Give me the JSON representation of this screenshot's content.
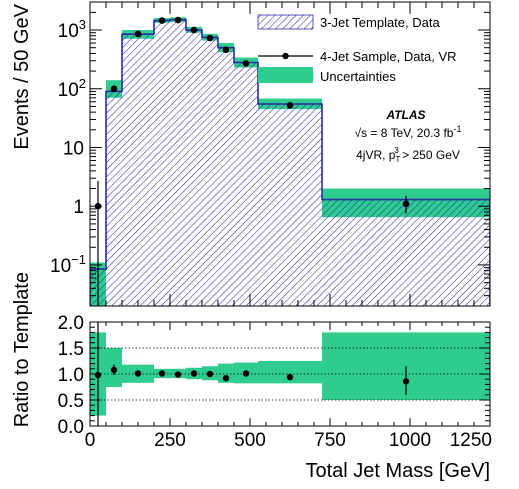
{
  "chart_data": [
    {
      "type": "bar",
      "panel": "main",
      "xlabel": "Total Jet Mass [GeV]",
      "ylabel": "Events / 50 GeV",
      "xlim": [
        0,
        1250
      ],
      "ylim": [
        0.02,
        3000
      ],
      "yscale": "log",
      "y_tick_labels": [
        {
          "base": "10",
          "exp": "−1",
          "value": 0.1
        },
        {
          "base": "1",
          "exp": "",
          "value": 1
        },
        {
          "base": "10",
          "exp": "",
          "value": 10
        },
        {
          "base": "10",
          "exp": "2",
          "value": 100
        },
        {
          "base": "10",
          "exp": "3",
          "value": 1000
        }
      ],
      "x_tick_labels": [
        "0",
        "250",
        "500",
        "750",
        "1000",
        "1250"
      ],
      "bins": [
        {
          "lo": 0,
          "hi": 50,
          "template": 0.085,
          "unc_lo": 0.02,
          "unc_hi": 0.11
        },
        {
          "lo": 50,
          "hi": 100,
          "template": 90,
          "unc_lo": 70,
          "unc_hi": 140
        },
        {
          "lo": 100,
          "hi": 200,
          "template": 850,
          "unc_lo": 710,
          "unc_hi": 1000
        },
        {
          "lo": 200,
          "hi": 250,
          "template": 1450,
          "unc_lo": 1330,
          "unc_hi": 1600
        },
        {
          "lo": 250,
          "hi": 300,
          "template": 1500,
          "unc_lo": 1380,
          "unc_hi": 1650
        },
        {
          "lo": 300,
          "hi": 350,
          "template": 1000,
          "unc_lo": 900,
          "unc_hi": 1130
        },
        {
          "lo": 350,
          "hi": 400,
          "template": 750,
          "unc_lo": 660,
          "unc_hi": 860
        },
        {
          "lo": 400,
          "hi": 450,
          "template": 500,
          "unc_lo": 420,
          "unc_hi": 600
        },
        {
          "lo": 450,
          "hi": 525,
          "template": 280,
          "unc_lo": 230,
          "unc_hi": 340
        },
        {
          "lo": 525,
          "hi": 725,
          "template": 55,
          "unc_lo": 45,
          "unc_hi": 68
        },
        {
          "lo": 725,
          "hi": 1250,
          "template": 1.3,
          "unc_lo": 0.65,
          "unc_hi": 2.0
        }
      ],
      "series": [
        {
          "name": "4-Jet Sample, Data, VR",
          "points": [
            {
              "x": 25,
              "y": 1.0,
              "ylo": 0.02,
              "yhi": 2.7
            },
            {
              "x": 75,
              "y": 100,
              "ylo": 90,
              "yhi": 110
            },
            {
              "x": 150,
              "y": 860,
              "ylo": 830,
              "yhi": 890
            },
            {
              "x": 225,
              "y": 1450,
              "ylo": 1410,
              "yhi": 1490
            },
            {
              "x": 275,
              "y": 1480,
              "ylo": 1440,
              "yhi": 1520
            },
            {
              "x": 325,
              "y": 1000,
              "ylo": 970,
              "yhi": 1030
            },
            {
              "x": 375,
              "y": 730,
              "ylo": 700,
              "yhi": 760
            },
            {
              "x": 425,
              "y": 460,
              "ylo": 440,
              "yhi": 480
            },
            {
              "x": 487.5,
              "y": 270,
              "ylo": 255,
              "yhi": 285
            },
            {
              "x": 625,
              "y": 52,
              "ylo": 48,
              "yhi": 56
            },
            {
              "x": 987.5,
              "y": 1.1,
              "ylo": 0.75,
              "yhi": 1.5
            }
          ]
        }
      ],
      "legend": {
        "position": "top-right",
        "entries": [
          "3-Jet Template, Data",
          "4-Jet Sample, Data, VR",
          "Uncertainties"
        ]
      },
      "annotations": {
        "experiment": "ATLAS",
        "energy_prefix": "√s = 8 TeV, 20.3 fb",
        "energy_sup": "-1",
        "region_prefix": "4jVR, p",
        "region_sub": "T",
        "region_sup": "3",
        "region_suffix": " > 250 GeV"
      },
      "colors": {
        "template_hatch": "#2b2ba6",
        "uncertainty": "#2ecc8f"
      }
    },
    {
      "type": "scatter",
      "panel": "ratio",
      "xlabel": "Total Jet Mass [GeV]",
      "ylabel": "Ratio to Template",
      "xlim": [
        0,
        1250
      ],
      "ylim": [
        0.0,
        2.0
      ],
      "y_tick_labels": [
        "0.0",
        "0.5",
        "1.0",
        "1.5",
        "2.0"
      ],
      "grid_y": [
        0.5,
        1.0,
        1.5
      ],
      "uncertainty_band": [
        {
          "lo": 0,
          "hi": 50,
          "down": 0.2,
          "up": 1.8
        },
        {
          "lo": 50,
          "hi": 100,
          "down": 0.75,
          "up": 1.5
        },
        {
          "lo": 100,
          "hi": 200,
          "down": 0.83,
          "up": 1.18
        },
        {
          "lo": 200,
          "hi": 250,
          "down": 0.92,
          "up": 1.1
        },
        {
          "lo": 250,
          "hi": 300,
          "down": 0.92,
          "up": 1.1
        },
        {
          "lo": 300,
          "hi": 350,
          "down": 0.9,
          "up": 1.12
        },
        {
          "lo": 350,
          "hi": 400,
          "down": 0.88,
          "up": 1.15
        },
        {
          "lo": 400,
          "hi": 450,
          "down": 0.83,
          "up": 1.2
        },
        {
          "lo": 450,
          "hi": 525,
          "down": 0.82,
          "up": 1.22
        },
        {
          "lo": 525,
          "hi": 725,
          "down": 0.82,
          "up": 1.25
        },
        {
          "lo": 725,
          "hi": 1250,
          "down": 0.5,
          "up": 1.8
        }
      ],
      "points": [
        {
          "x": 25,
          "y": 0.98,
          "ylo": 0.0,
          "yhi": 2.0
        },
        {
          "x": 75,
          "y": 1.08,
          "ylo": 0.98,
          "yhi": 1.18
        },
        {
          "x": 150,
          "y": 1.01,
          "ylo": 0.98,
          "yhi": 1.04
        },
        {
          "x": 225,
          "y": 1.01,
          "ylo": 0.98,
          "yhi": 1.04
        },
        {
          "x": 275,
          "y": 0.99,
          "ylo": 0.96,
          "yhi": 1.02
        },
        {
          "x": 325,
          "y": 1.01,
          "ylo": 0.98,
          "yhi": 1.04
        },
        {
          "x": 375,
          "y": 1.0,
          "ylo": 0.97,
          "yhi": 1.03
        },
        {
          "x": 425,
          "y": 0.92,
          "ylo": 0.88,
          "yhi": 0.96
        },
        {
          "x": 487.5,
          "y": 1.01,
          "ylo": 0.96,
          "yhi": 1.06
        },
        {
          "x": 625,
          "y": 0.94,
          "ylo": 0.88,
          "yhi": 1.0
        },
        {
          "x": 987.5,
          "y": 0.86,
          "ylo": 0.6,
          "yhi": 1.15
        }
      ]
    }
  ]
}
